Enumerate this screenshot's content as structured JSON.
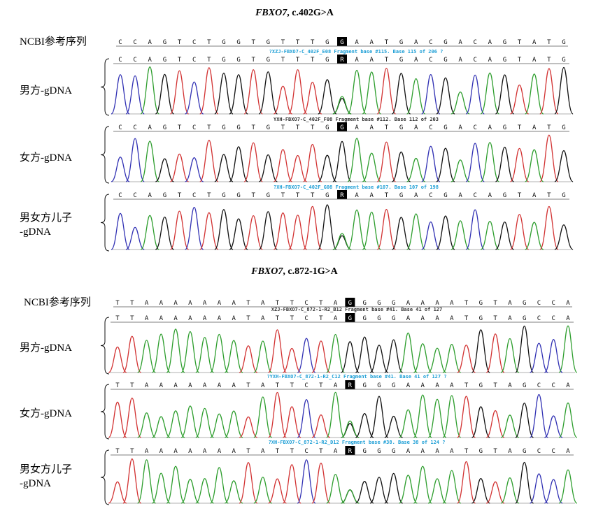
{
  "panels": [
    {
      "title_gene": "FBXO7",
      "title_variant": ", c.402G>A",
      "ref_label": "NCBI参考序列",
      "ref_seq": "CCAGTCTGGTGTTTGGAATGACGACAGTATG",
      "ref_hl": 15,
      "tracks": [
        {
          "label": "男方-gDNA",
          "file": "?XZJ-FBXO7-C_402F_E08 Fragment base #115. Base 115 of 206 ?",
          "file_color": "#1e9fd6",
          "seq": "CCAGTCTGGTGTTTGRAATGACGACAGTATG",
          "hl": 15
        },
        {
          "label": "女方-gDNA",
          "file": "YXH-FBXO7-C_402F_F08 Fragment base #112. Base 112 of 203",
          "file_color": "#333333",
          "seq": "CCAGTCTGGTGTTTGGAATGACGACAGTATG",
          "hl": 15
        },
        {
          "label": "男女方儿子\n-gDNA",
          "file": "?XH-FBXO7-C_402F_G08 Fragment base #107. Base 107 of 198",
          "file_color": "#1e9fd6",
          "seq": "CCAGTCTGGTGTTTGRAATGACGACAGTATG",
          "hl": 15
        }
      ]
    },
    {
      "title_gene": "FBXO7",
      "title_variant": ", c.872-1G>A",
      "ref_label": "NCBI参考序列",
      "ref_seq": "TTAAAAAAATATTCTAGGGGAAAATGTAGCCA",
      "ref_hl": 16,
      "tracks": [
        {
          "label": "男方-gDNA",
          "file": "XZJ-FBXO7-C_872-1-R2_B12 Fragment base #41. Base 41 of 127",
          "file_color": "#333333",
          "seq": "TTAAAAAAATATTCTAGGGGAAAATGTAGCCA",
          "hl": 16
        },
        {
          "label": "女方-gDNA",
          "file": "?YXH-FBXO7-C_872-1-R2_C12 Fragment base #41. Base 41 of 127 ?",
          "file_color": "#1e9fd6",
          "seq": "TTAAAAAAATATTCTARGGGAAAATGTAGCCA",
          "hl": 16
        },
        {
          "label": "男女方儿子\n-gDNA",
          "file": "?XH-FBXO7-C_872-1-R2_D12 Fragment base #38. Base 38 of 124 ?",
          "file_color": "#1e9fd6",
          "seq": "TTAAAAAAATATTCTARGGGAAAATGTAGCCA",
          "hl": 16
        }
      ]
    }
  ],
  "colors": {
    "A": "#2e9e2e",
    "C": "#3232b4",
    "G": "#111111",
    "T": "#d23232",
    "highlight_bg": "#000000",
    "highlight_fg": "#ffffff",
    "file_blue": "#1e9fd6"
  }
}
